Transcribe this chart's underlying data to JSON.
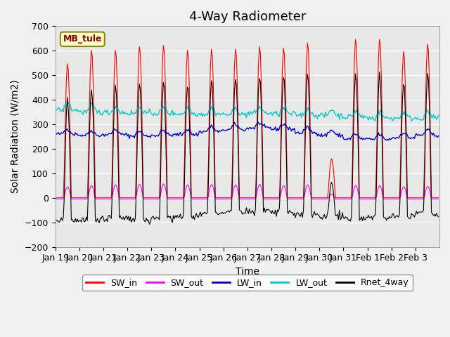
{
  "title": "4-Way Radiometer",
  "xlabel": "Time",
  "ylabel": "Solar Radiation (W/m2)",
  "ylim": [
    -200,
    700
  ],
  "yticks": [
    -200,
    -100,
    0,
    100,
    200,
    300,
    400,
    500,
    600,
    700
  ],
  "x_tick_labels": [
    "Jan 19",
    "Jan 20",
    "Jan 21",
    "Jan 22",
    "Jan 23",
    "Jan 24",
    "Jan 25",
    "Jan 26",
    "Jan 27",
    "Jan 28",
    "Jan 29",
    "Jan 30",
    "Jan 31",
    "Feb 1",
    "Feb 2",
    "Feb 3"
  ],
  "station_label": "MB_tule",
  "colors": {
    "SW_in": "#ff0000",
    "SW_out": "#ff00ff",
    "LW_in": "#0000cc",
    "LW_out": "#00cccc",
    "Rnet_4way": "#000000"
  },
  "legend_labels": [
    "SW_in",
    "SW_out",
    "LW_in",
    "LW_out",
    "Rnet_4way"
  ],
  "background_color": "#e8e8e8",
  "grid_color": "#ffffff",
  "title_fontsize": 13,
  "axis_fontsize": 10,
  "tick_fontsize": 9
}
